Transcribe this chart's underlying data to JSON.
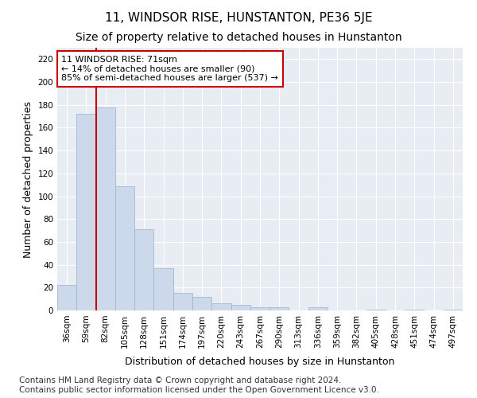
{
  "title": "11, WINDSOR RISE, HUNSTANTON, PE36 5JE",
  "subtitle": "Size of property relative to detached houses in Hunstanton",
  "xlabel": "Distribution of detached houses by size in Hunstanton",
  "ylabel": "Number of detached properties",
  "footer_line1": "Contains HM Land Registry data © Crown copyright and database right 2024.",
  "footer_line2": "Contains public sector information licensed under the Open Government Licence v3.0.",
  "categories": [
    "36sqm",
    "59sqm",
    "82sqm",
    "105sqm",
    "128sqm",
    "151sqm",
    "174sqm",
    "197sqm",
    "220sqm",
    "243sqm",
    "267sqm",
    "290sqm",
    "313sqm",
    "336sqm",
    "359sqm",
    "382sqm",
    "405sqm",
    "428sqm",
    "451sqm",
    "474sqm",
    "497sqm"
  ],
  "values": [
    22,
    172,
    178,
    109,
    71,
    37,
    15,
    12,
    6,
    5,
    3,
    3,
    0,
    3,
    0,
    0,
    1,
    0,
    1,
    0,
    1
  ],
  "bar_color": "#ccd9ea",
  "bar_edge_color": "#9ab0cc",
  "ylim": [
    0,
    230
  ],
  "yticks": [
    0,
    20,
    40,
    60,
    80,
    100,
    120,
    140,
    160,
    180,
    200,
    220
  ],
  "property_line_x": 1.5,
  "annotation_text_line1": "11 WINDSOR RISE: 71sqm",
  "annotation_text_line2": "← 14% of detached houses are smaller (90)",
  "annotation_text_line3": "85% of semi-detached houses are larger (537) →",
  "annotation_box_color": "#ffffff",
  "annotation_box_edge": "#cc0000",
  "red_line_color": "#cc0000",
  "background_color": "#ffffff",
  "plot_bg_color": "#e8edf4",
  "grid_color": "#ffffff",
  "title_fontsize": 11,
  "subtitle_fontsize": 10,
  "axis_label_fontsize": 9,
  "tick_fontsize": 7.5,
  "annotation_fontsize": 8,
  "footer_fontsize": 7.5
}
